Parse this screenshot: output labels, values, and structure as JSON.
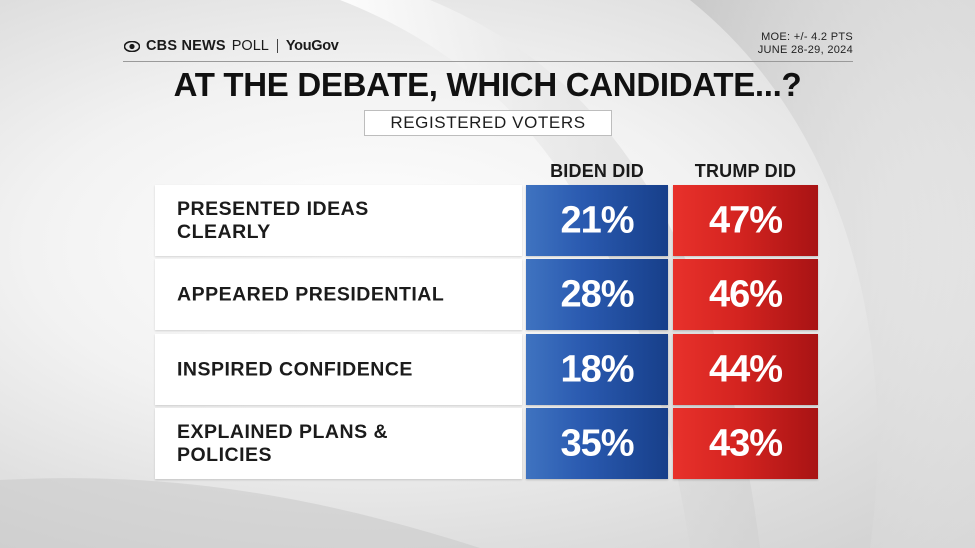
{
  "header": {
    "brand_cbs": "CBS NEWS",
    "brand_poll": "POLL",
    "brand_partner": "YouGov",
    "moe_line": "MOE: +/- 4.2 PTS",
    "date_line": "JUNE 28-29, 2024"
  },
  "colors": {
    "biden": "#2a5ab0",
    "trump": "#d42420"
  },
  "chart_data": {
    "type": "table",
    "title": "AT THE DEBATE, WHICH CANDIDATE...?",
    "subtitle": "REGISTERED VOTERS",
    "columns": [
      "BIDEN DID",
      "TRUMP DID"
    ],
    "rows": [
      {
        "label": "PRESENTED IDEAS CLEARLY",
        "values": [
          "21%",
          "47%"
        ]
      },
      {
        "label": "APPEARED PRESIDENTIAL",
        "values": [
          "28%",
          "46%"
        ]
      },
      {
        "label": "INSPIRED CONFIDENCE",
        "values": [
          "18%",
          "44%"
        ]
      },
      {
        "label": "EXPLAINED PLANS & POLICIES",
        "values": [
          "35%",
          "43%"
        ]
      }
    ]
  }
}
